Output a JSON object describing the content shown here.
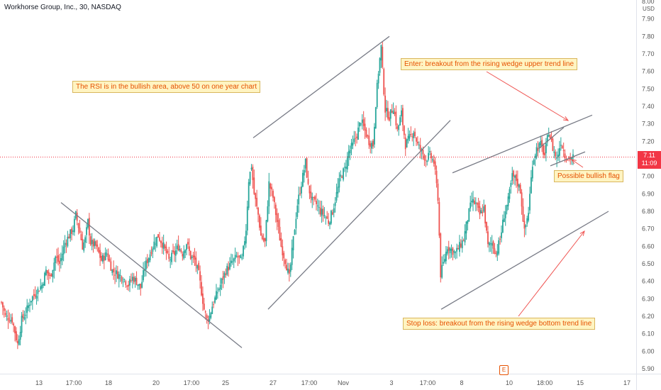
{
  "header": {
    "symbol_title": "Workhorse Group, Inc., 30, NASDAQ",
    "currency": "USD"
  },
  "annotations": {
    "rsi_note": "The RSI is in the bullish area, above 50 on one year chart",
    "enter_note": "Enter: breakout from the rising wedge upper trend line",
    "stop_note": "Stop loss: breakout from the rising wedge bottom trend line",
    "flag_note": "Possible bullish flag"
  },
  "price_label": {
    "price": "7.11",
    "countdown": "11:09"
  },
  "earnings_marker": "E",
  "colors": {
    "up": "#26a69a",
    "down": "#ef5350",
    "trendline": "#787b86",
    "arrow": "#ef5350",
    "last_price_line": "#f23645"
  },
  "chart_data": {
    "type": "candlestick",
    "ylim": [
      5.86,
      8.0
    ],
    "y_ticks": [
      "8.00",
      "7.90",
      "7.80",
      "7.70",
      "7.60",
      "7.50",
      "7.40",
      "7.30",
      "7.20",
      "7.10",
      "7.00",
      "6.90",
      "6.80",
      "6.70",
      "6.60",
      "6.50",
      "6.40",
      "6.30",
      "6.20",
      "6.10",
      "6.00",
      "5.90"
    ],
    "x_ticks": [
      "13",
      "17:00",
      "18",
      "20",
      "17:00",
      "25",
      "27",
      "17:00",
      "Nov",
      "3",
      "17:00",
      "8",
      "10",
      "18:00",
      "15",
      "17"
    ],
    "last_price": 7.11,
    "anchors": [
      [
        0,
        6.28
      ],
      [
        3,
        6.2
      ],
      [
        8,
        6.18
      ],
      [
        12,
        6.04
      ],
      [
        15,
        6.18
      ],
      [
        18,
        6.22
      ],
      [
        22,
        6.3
      ],
      [
        26,
        6.34
      ],
      [
        30,
        6.38
      ],
      [
        33,
        6.46
      ],
      [
        36,
        6.42
      ],
      [
        40,
        6.54
      ],
      [
        43,
        6.5
      ],
      [
        47,
        6.62
      ],
      [
        50,
        6.66
      ],
      [
        53,
        6.7
      ],
      [
        55,
        6.78
      ],
      [
        58,
        6.68
      ],
      [
        60,
        6.6
      ],
      [
        62,
        6.64
      ],
      [
        64,
        6.74
      ],
      [
        66,
        6.62
      ],
      [
        70,
        6.6
      ],
      [
        74,
        6.52
      ],
      [
        78,
        6.56
      ],
      [
        82,
        6.46
      ],
      [
        86,
        6.44
      ],
      [
        90,
        6.42
      ],
      [
        94,
        6.38
      ],
      [
        97,
        6.42
      ],
      [
        100,
        6.4
      ],
      [
        103,
        6.36
      ],
      [
        106,
        6.48
      ],
      [
        110,
        6.56
      ],
      [
        113,
        6.62
      ],
      [
        116,
        6.66
      ],
      [
        120,
        6.6
      ],
      [
        124,
        6.52
      ],
      [
        128,
        6.56
      ],
      [
        131,
        6.6
      ],
      [
        134,
        6.56
      ],
      [
        137,
        6.62
      ],
      [
        140,
        6.54
      ],
      [
        143,
        6.52
      ],
      [
        146,
        6.44
      ],
      [
        148,
        6.34
      ],
      [
        150,
        6.24
      ],
      [
        152,
        6.18
      ],
      [
        154,
        6.2
      ],
      [
        156,
        6.26
      ],
      [
        158,
        6.3
      ],
      [
        162,
        6.38
      ],
      [
        166,
        6.46
      ],
      [
        170,
        6.5
      ],
      [
        174,
        6.54
      ],
      [
        178,
        6.52
      ],
      [
        181,
        6.7
      ],
      [
        183,
        6.98
      ],
      [
        185,
        7.06
      ],
      [
        187,
        6.9
      ],
      [
        190,
        6.78
      ],
      [
        192,
        6.66
      ],
      [
        195,
        6.62
      ],
      [
        198,
        6.96
      ],
      [
        201,
        6.88
      ],
      [
        204,
        6.74
      ],
      [
        207,
        6.6
      ],
      [
        210,
        6.52
      ],
      [
        213,
        6.42
      ],
      [
        216,
        6.64
      ],
      [
        219,
        6.84
      ],
      [
        222,
        6.96
      ],
      [
        225,
        7.08
      ],
      [
        227,
        6.94
      ],
      [
        230,
        6.86
      ],
      [
        233,
        6.84
      ],
      [
        236,
        6.8
      ],
      [
        239,
        6.78
      ],
      [
        242,
        6.74
      ],
      [
        245,
        6.8
      ],
      [
        248,
        6.9
      ],
      [
        251,
        7.0
      ],
      [
        254,
        7.04
      ],
      [
        257,
        7.14
      ],
      [
        260,
        7.18
      ],
      [
        263,
        7.24
      ],
      [
        266,
        7.32
      ],
      [
        269,
        7.26
      ],
      [
        272,
        7.2
      ],
      [
        275,
        7.18
      ],
      [
        277,
        7.42
      ],
      [
        279,
        7.6
      ],
      [
        281,
        7.74
      ],
      [
        282,
        7.6
      ],
      [
        284,
        7.38
      ],
      [
        287,
        7.34
      ],
      [
        290,
        7.4
      ],
      [
        293,
        7.26
      ],
      [
        296,
        7.36
      ],
      [
        299,
        7.18
      ],
      [
        302,
        7.22
      ],
      [
        305,
        7.26
      ],
      [
        308,
        7.18
      ],
      [
        311,
        7.14
      ],
      [
        314,
        7.1
      ],
      [
        317,
        7.12
      ],
      [
        320,
        7.08
      ],
      [
        323,
        6.88
      ],
      [
        325,
        6.44
      ],
      [
        327,
        6.5
      ],
      [
        330,
        6.6
      ],
      [
        333,
        6.58
      ],
      [
        336,
        6.56
      ],
      [
        339,
        6.6
      ],
      [
        342,
        6.64
      ],
      [
        345,
        6.76
      ],
      [
        348,
        6.86
      ],
      [
        351,
        6.84
      ],
      [
        354,
        6.78
      ],
      [
        357,
        6.82
      ],
      [
        360,
        6.6
      ],
      [
        363,
        6.62
      ],
      [
        366,
        6.56
      ],
      [
        369,
        6.64
      ],
      [
        372,
        6.78
      ],
      [
        375,
        6.86
      ],
      [
        378,
        7.0
      ],
      [
        381,
        6.98
      ],
      [
        384,
        6.92
      ],
      [
        387,
        6.68
      ],
      [
        390,
        6.8
      ],
      [
        393,
        7.08
      ],
      [
        396,
        7.16
      ],
      [
        399,
        7.18
      ],
      [
        402,
        7.12
      ],
      [
        405,
        7.26
      ],
      [
        408,
        7.16
      ],
      [
        411,
        7.1
      ],
      [
        414,
        7.2
      ],
      [
        417,
        7.12
      ],
      [
        420,
        7.1
      ],
      [
        423,
        7.11
      ]
    ],
    "trendlines": [
      {
        "from": [
          "2022-10-13 17:00",
          6.85
        ],
        "to": [
          "2022-10-25",
          6.02
        ]
      },
      {
        "from": [
          "2022-10-26",
          7.22
        ],
        "to": [
          "2022-11-03",
          7.8
        ]
      },
      {
        "from": [
          "2022-10-26",
          6.24
        ],
        "to": [
          "2022-11-04",
          7.32
        ]
      },
      {
        "from": [
          "2022-11-07",
          7.02
        ],
        "to": [
          "2022-11-14",
          7.35
        ]
      },
      {
        "from": [
          "2022-11-07",
          6.24
        ],
        "to": [
          "2022-11-15",
          6.8
        ]
      },
      {
        "from": [
          "2022-11-11",
          7.16
        ],
        "to": [
          "2022-11-12",
          7.28
        ]
      },
      {
        "from": [
          "2022-11-11",
          7.06
        ],
        "to": [
          "2022-11-14",
          7.14
        ]
      }
    ]
  }
}
